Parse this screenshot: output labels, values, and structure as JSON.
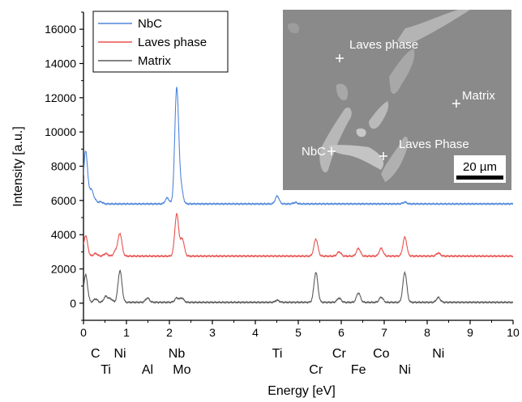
{
  "chart_data": {
    "type": "line",
    "xlabel": "Energy [eV]",
    "ylabel": "Intensity [a.u.]",
    "xlim": [
      0,
      10
    ],
    "ylim": [
      -1000,
      17000
    ],
    "xticks": [
      0,
      1,
      2,
      3,
      4,
      5,
      6,
      7,
      8,
      9,
      10
    ],
    "yticks": [
      0,
      2000,
      4000,
      6000,
      8000,
      10000,
      12000,
      14000,
      16000
    ],
    "grid": false,
    "legend_position": "top-left",
    "series": [
      {
        "name": "NbC",
        "color": "#4f86d9",
        "baseline": 5800,
        "peaks": [
          [
            0.05,
            3100
          ],
          [
            0.18,
            800
          ],
          [
            0.27,
            200
          ],
          [
            0.4,
            120
          ],
          [
            1.95,
            350
          ],
          [
            2.17,
            6750
          ],
          [
            2.27,
            900
          ],
          [
            4.51,
            450
          ],
          [
            4.93,
            80
          ],
          [
            7.48,
            100
          ]
        ]
      },
      {
        "name": "Laves phase",
        "color": "#e8524f",
        "baseline": 2750,
        "peaks": [
          [
            0.05,
            1200
          ],
          [
            0.28,
            150
          ],
          [
            0.52,
            150
          ],
          [
            0.75,
            300
          ],
          [
            0.85,
            1300
          ],
          [
            2.17,
            2450
          ],
          [
            2.3,
            1000
          ],
          [
            5.41,
            1000
          ],
          [
            5.95,
            250
          ],
          [
            6.4,
            450
          ],
          [
            6.93,
            450
          ],
          [
            7.48,
            1100
          ],
          [
            8.26,
            180
          ]
        ]
      },
      {
        "name": "Matrix",
        "color": "#5a5a5a",
        "baseline": 50,
        "peaks": [
          [
            0.05,
            1600
          ],
          [
            0.28,
            200
          ],
          [
            0.52,
            350
          ],
          [
            0.63,
            200
          ],
          [
            0.85,
            1850
          ],
          [
            1.49,
            250
          ],
          [
            2.17,
            250
          ],
          [
            2.29,
            250
          ],
          [
            4.51,
            120
          ],
          [
            5.41,
            1750
          ],
          [
            5.95,
            250
          ],
          [
            6.4,
            550
          ],
          [
            6.93,
            300
          ],
          [
            7.48,
            1750
          ],
          [
            8.26,
            280
          ]
        ]
      }
    ],
    "element_labels_top": [
      {
        "text": "C",
        "x": 0.28
      },
      {
        "text": "Ni",
        "x": 0.85
      },
      {
        "text": "Nb",
        "x": 2.17
      },
      {
        "text": "Ti",
        "x": 4.51
      },
      {
        "text": "Cr",
        "x": 5.95
      },
      {
        "text": "Co",
        "x": 6.93
      },
      {
        "text": "Ni",
        "x": 8.26
      }
    ],
    "element_labels_bottom": [
      {
        "text": "Ti",
        "x": 0.52
      },
      {
        "text": "Al",
        "x": 1.49
      },
      {
        "text": "Mo",
        "x": 2.29
      },
      {
        "text": "Cr",
        "x": 5.41
      },
      {
        "text": "Fe",
        "x": 6.4
      },
      {
        "text": "Ni",
        "x": 7.48
      }
    ]
  },
  "inset": {
    "markers": [
      {
        "label": "Laves phase"
      },
      {
        "label": "Matrix"
      },
      {
        "label": "NbC"
      },
      {
        "label": "Laves Phase"
      }
    ],
    "scale_bar": "20 µm"
  }
}
